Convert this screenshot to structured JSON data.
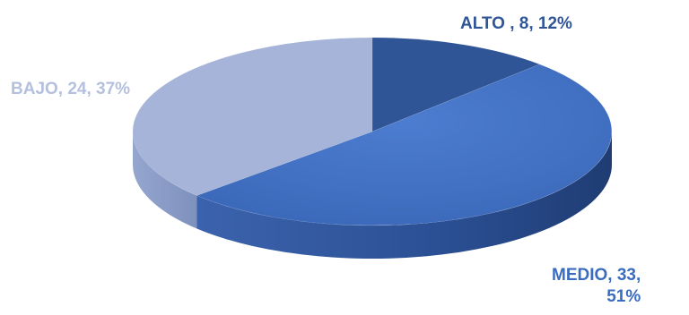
{
  "chart_data": {
    "type": "pie",
    "title": "",
    "slices": [
      {
        "name": "ALTO",
        "value": 8,
        "percent": "12%",
        "label": "ALTO , 8, 12%",
        "color": "#2f5597"
      },
      {
        "name": "MEDIO",
        "value": 33,
        "percent": "51%",
        "label_line1": "MEDIO, 33,",
        "label_line2": "51%",
        "color": "#4472c4"
      },
      {
        "name": "BAJO",
        "value": 24,
        "percent": "37%",
        "label": "BAJO, 24, 37%",
        "color": "#a5b4d8"
      }
    ],
    "style": "3d",
    "legend": "none"
  }
}
